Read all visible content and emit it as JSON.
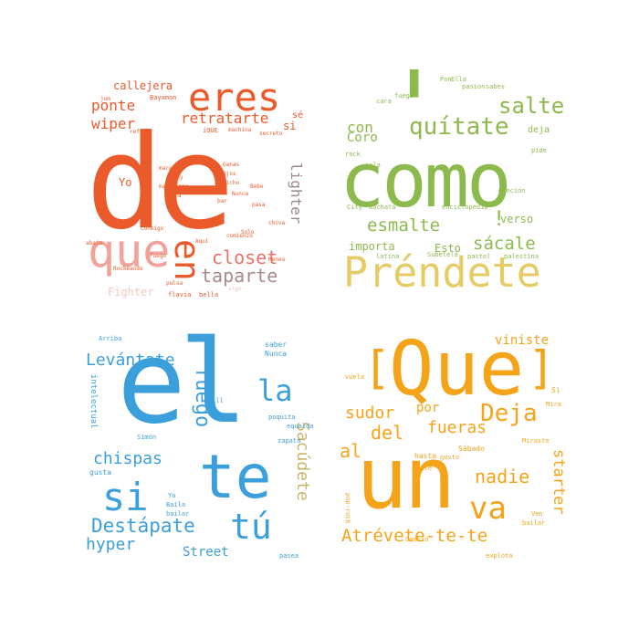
{
  "clouds": [
    {
      "name": "red",
      "color": "#e85a2a",
      "words": [
        "de",
        "que",
        "eres",
        "en",
        "closet",
        "taparte",
        "retratarte",
        "lighter",
        "ponte",
        "wiper",
        "callejera",
        "Fighter",
        "Yo",
        "si",
        "sé",
        "Bayamon",
        "jum",
        "refill",
        "iQUE",
        "machina",
        "secreto",
        "Aquí",
        "Ganas",
        "Ojos",
        "dicho",
        "pasa",
        "comienzo",
        "Bora",
        "abajo",
        "bar",
        "pony",
        "algo",
        "mareada",
        "mariguana",
        "Rockeando",
        "Fuego",
        "Conmigo",
        "Bebe",
        "Menea",
        "pulsa",
        "Nunca",
        "Solo",
        "chiva",
        "bella",
        "flavia"
      ]
    },
    {
      "name": "green",
      "color": "#8db54a",
      "words": [
        "'",
        "como",
        "Préndete",
        "salte",
        "quítate",
        "esmalte",
        "sácale",
        "con",
        "Coro",
        "importa",
        "Esto",
        "verso",
        "!",
        "deja",
        "Ella",
        "Pon",
        "sola",
        "City",
        "bachata",
        "enciclopedia",
        "Subetela",
        "latina",
        "sabes",
        "mención",
        "palestina",
        "pide",
        "cara",
        "rock",
        "fuego",
        "pasion",
        "pastel"
      ]
    },
    {
      "name": "blue",
      "color": "#3b9fdb",
      "words": [
        "el",
        "te",
        "si",
        "tú",
        "la",
        "fuego",
        "Levántate",
        "Destápate",
        "chispas",
        "Sacúdete",
        "hyper",
        "Street",
        "intelectual",
        "saber",
        "Nunca",
        "Arriba",
        "Baila",
        "bailar",
        "Yo",
        "Bill",
        "zapata",
        "equalda",
        "poquita",
        "Simón",
        "pasea",
        "gusta"
      ]
    },
    {
      "name": "yellow",
      "color": "#f5a41a",
      "words": [
        "Que",
        "un",
        "va",
        "[",
        "]",
        "Deja",
        "del",
        "fueras",
        "al",
        "sudor",
        "por",
        "nadie",
        "starter",
        "Atrévete-te-te",
        "viniste",
        "hasta",
        "Cambia",
        "bailar",
        "explota",
        "Sábado",
        "pop-rock",
        "vuela",
        "Si",
        "gusto",
        "Mira",
        "Ven",
        "Ponle",
        "Miraste"
      ]
    }
  ]
}
